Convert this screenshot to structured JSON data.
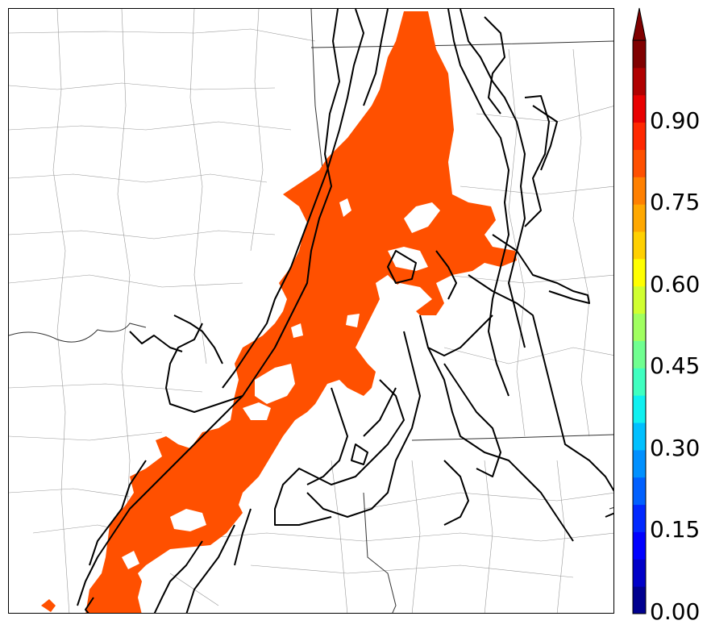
{
  "colorbar": {
    "ticks": [
      "0.00",
      "0.15",
      "0.30",
      "0.45",
      "0.60",
      "0.75",
      "0.90"
    ],
    "tick_values": [
      0.0,
      0.15,
      0.3,
      0.45,
      0.6,
      0.75,
      0.9
    ],
    "range": [
      0.0,
      1.05
    ],
    "extend": "max",
    "colors": [
      "#00008f",
      "#0000c8",
      "#0000ff",
      "#0028ff",
      "#0060ff",
      "#0090ff",
      "#00c0ff",
      "#10f0f0",
      "#40ffc0",
      "#70ff90",
      "#a0ff60",
      "#d0ff30",
      "#ffff00",
      "#ffd000",
      "#ffa800",
      "#ff8000",
      "#ff5000",
      "#ff2800",
      "#e80000",
      "#b00000",
      "#800000"
    ],
    "extend_color": "#800000"
  },
  "map": {
    "fill_color": "#ff5000",
    "contour_color": "#000000",
    "boundary_color": "#888888"
  }
}
